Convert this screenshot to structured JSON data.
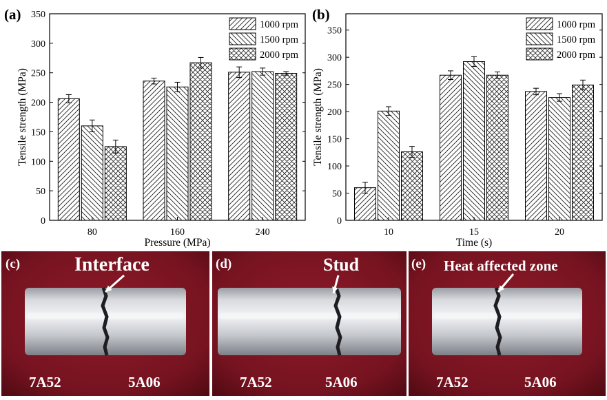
{
  "colors": {
    "photo_bg": "#7a1420",
    "photo_bg_dark": "#4e0a12",
    "metal_light": "#e4e6ea",
    "metal_dark": "#8d9097",
    "text_white": "#ffffff"
  },
  "chart_data": [
    {
      "panel_label": "(a)",
      "type": "bar",
      "xlabel": "Pressure (MPa)",
      "ylabel": "Tensile strength (MPa)",
      "categories": [
        "80",
        "160",
        "240"
      ],
      "ylim": [
        0,
        350
      ],
      "yticks": [
        0,
        50,
        100,
        150,
        200,
        250,
        300,
        350
      ],
      "legend_position": "top-right",
      "series": [
        {
          "name": "1000 rpm",
          "values": [
            206,
            236,
            251
          ],
          "errors": [
            7,
            5,
            9
          ],
          "pattern": "hatch-right"
        },
        {
          "name": "1500 rpm",
          "values": [
            160,
            226,
            252
          ],
          "errors": [
            10,
            8,
            6
          ],
          "pattern": "hatch-left"
        },
        {
          "name": "2000 rpm",
          "values": [
            125,
            267,
            249
          ],
          "errors": [
            11,
            9,
            3
          ],
          "pattern": "cross"
        }
      ]
    },
    {
      "panel_label": "(b)",
      "type": "bar",
      "xlabel": "Time (s)",
      "ylabel": "Tensile strength (MPa)",
      "categories": [
        "10",
        "15",
        "20"
      ],
      "ylim": [
        0,
        380
      ],
      "yticks": [
        0,
        50,
        100,
        150,
        200,
        250,
        300,
        350
      ],
      "legend_position": "top-right",
      "series": [
        {
          "name": "1000 rpm",
          "values": [
            60,
            267,
            237
          ],
          "errors": [
            10,
            8,
            6
          ],
          "pattern": "hatch-right"
        },
        {
          "name": "1500 rpm",
          "values": [
            201,
            292,
            226
          ],
          "errors": [
            8,
            9,
            7
          ],
          "pattern": "hatch-left"
        },
        {
          "name": "2000 rpm",
          "values": [
            126,
            267,
            249
          ],
          "errors": [
            10,
            6,
            9
          ],
          "pattern": "cross"
        }
      ]
    }
  ],
  "photos": [
    {
      "label": "(c)",
      "annotation": "Interface",
      "left_material": "7A52",
      "right_material": "5A06"
    },
    {
      "label": "(d)",
      "annotation": "Stud",
      "left_material": "7A52",
      "right_material": "5A06"
    },
    {
      "label": "(e)",
      "annotation": "Heat affected zone",
      "left_material": "7A52",
      "right_material": "5A06"
    }
  ]
}
